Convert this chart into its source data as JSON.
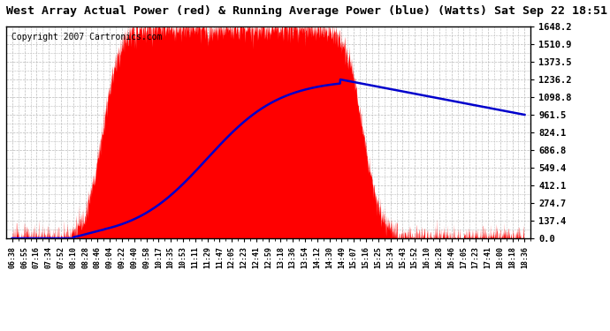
{
  "title": "West Array Actual Power (red) & Running Average Power (blue) (Watts) Sat Sep 22 18:51",
  "copyright": "Copyright 2007 Cartronics.com",
  "y_ticks": [
    0.0,
    137.4,
    274.7,
    412.1,
    549.4,
    686.8,
    824.1,
    961.5,
    1098.8,
    1236.2,
    1373.5,
    1510.9,
    1648.2
  ],
  "ylim": [
    0.0,
    1648.2
  ],
  "x_labels": [
    "06:38",
    "06:55",
    "07:16",
    "07:34",
    "07:52",
    "08:10",
    "08:28",
    "08:46",
    "09:04",
    "09:22",
    "09:40",
    "09:58",
    "10:17",
    "10:35",
    "10:53",
    "11:11",
    "11:29",
    "11:47",
    "12:05",
    "12:23",
    "12:41",
    "12:59",
    "13:18",
    "13:36",
    "13:54",
    "14:12",
    "14:30",
    "14:49",
    "15:07",
    "15:16",
    "15:25",
    "15:34",
    "15:43",
    "15:52",
    "16:10",
    "16:28",
    "16:46",
    "17:05",
    "17:23",
    "17:41",
    "18:00",
    "18:18",
    "18:36"
  ],
  "background_color": "#ffffff",
  "plot_bg_color": "#ffffff",
  "grid_color": "#bbbbbb",
  "actual_color": "#ff0000",
  "avg_color": "#0000cc",
  "title_fontsize": 9.5,
  "copyright_fontsize": 7
}
